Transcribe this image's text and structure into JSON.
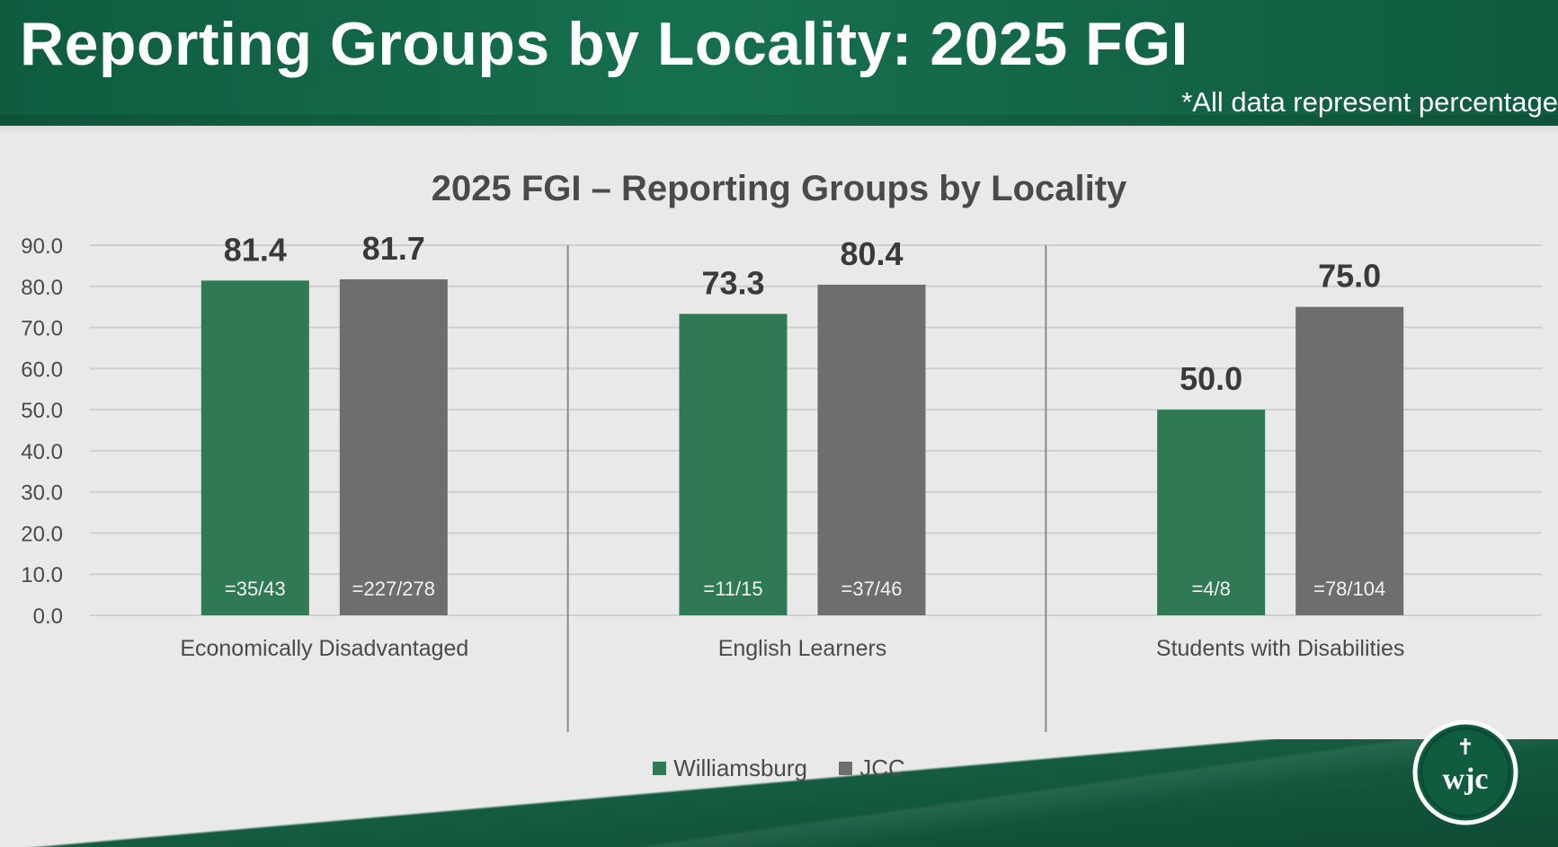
{
  "slide": {
    "title": "Reporting Groups by Locality: 2025 FGI",
    "footnote": "*All data represent percentage"
  },
  "logo": {
    "text": "wjc",
    "icon": "wjc-logo"
  },
  "colors": {
    "williamsburg": "#2f7a54",
    "jcc": "#6e6e6e",
    "header": "#0f5c3f"
  },
  "chart_data": {
    "type": "bar",
    "title": "2025 FGI – Reporting Groups by Locality",
    "xlabel": "",
    "ylabel": "",
    "ylim": [
      0,
      90
    ],
    "yticks": [
      "0.0",
      "10.0",
      "20.0",
      "30.0",
      "40.0",
      "50.0",
      "60.0",
      "70.0",
      "80.0",
      "90.0"
    ],
    "grid": true,
    "legend_position": "bottom",
    "categories": [
      "Economically Disadvantaged",
      "English Learners",
      "Students with Disabilities"
    ],
    "series": [
      {
        "name": "Williamsburg",
        "values": [
          81.4,
          73.3,
          50.0
        ],
        "labels": [
          "81.4",
          "73.3",
          "50.0"
        ],
        "counts": [
          "=35/43",
          "=11/15",
          "=4/8"
        ]
      },
      {
        "name": "JCC",
        "values": [
          81.7,
          80.4,
          75.0
        ],
        "labels": [
          "81.7",
          "80.4",
          "75.0"
        ],
        "counts": [
          "=227/278",
          "=37/46",
          "=78/104"
        ]
      }
    ]
  }
}
